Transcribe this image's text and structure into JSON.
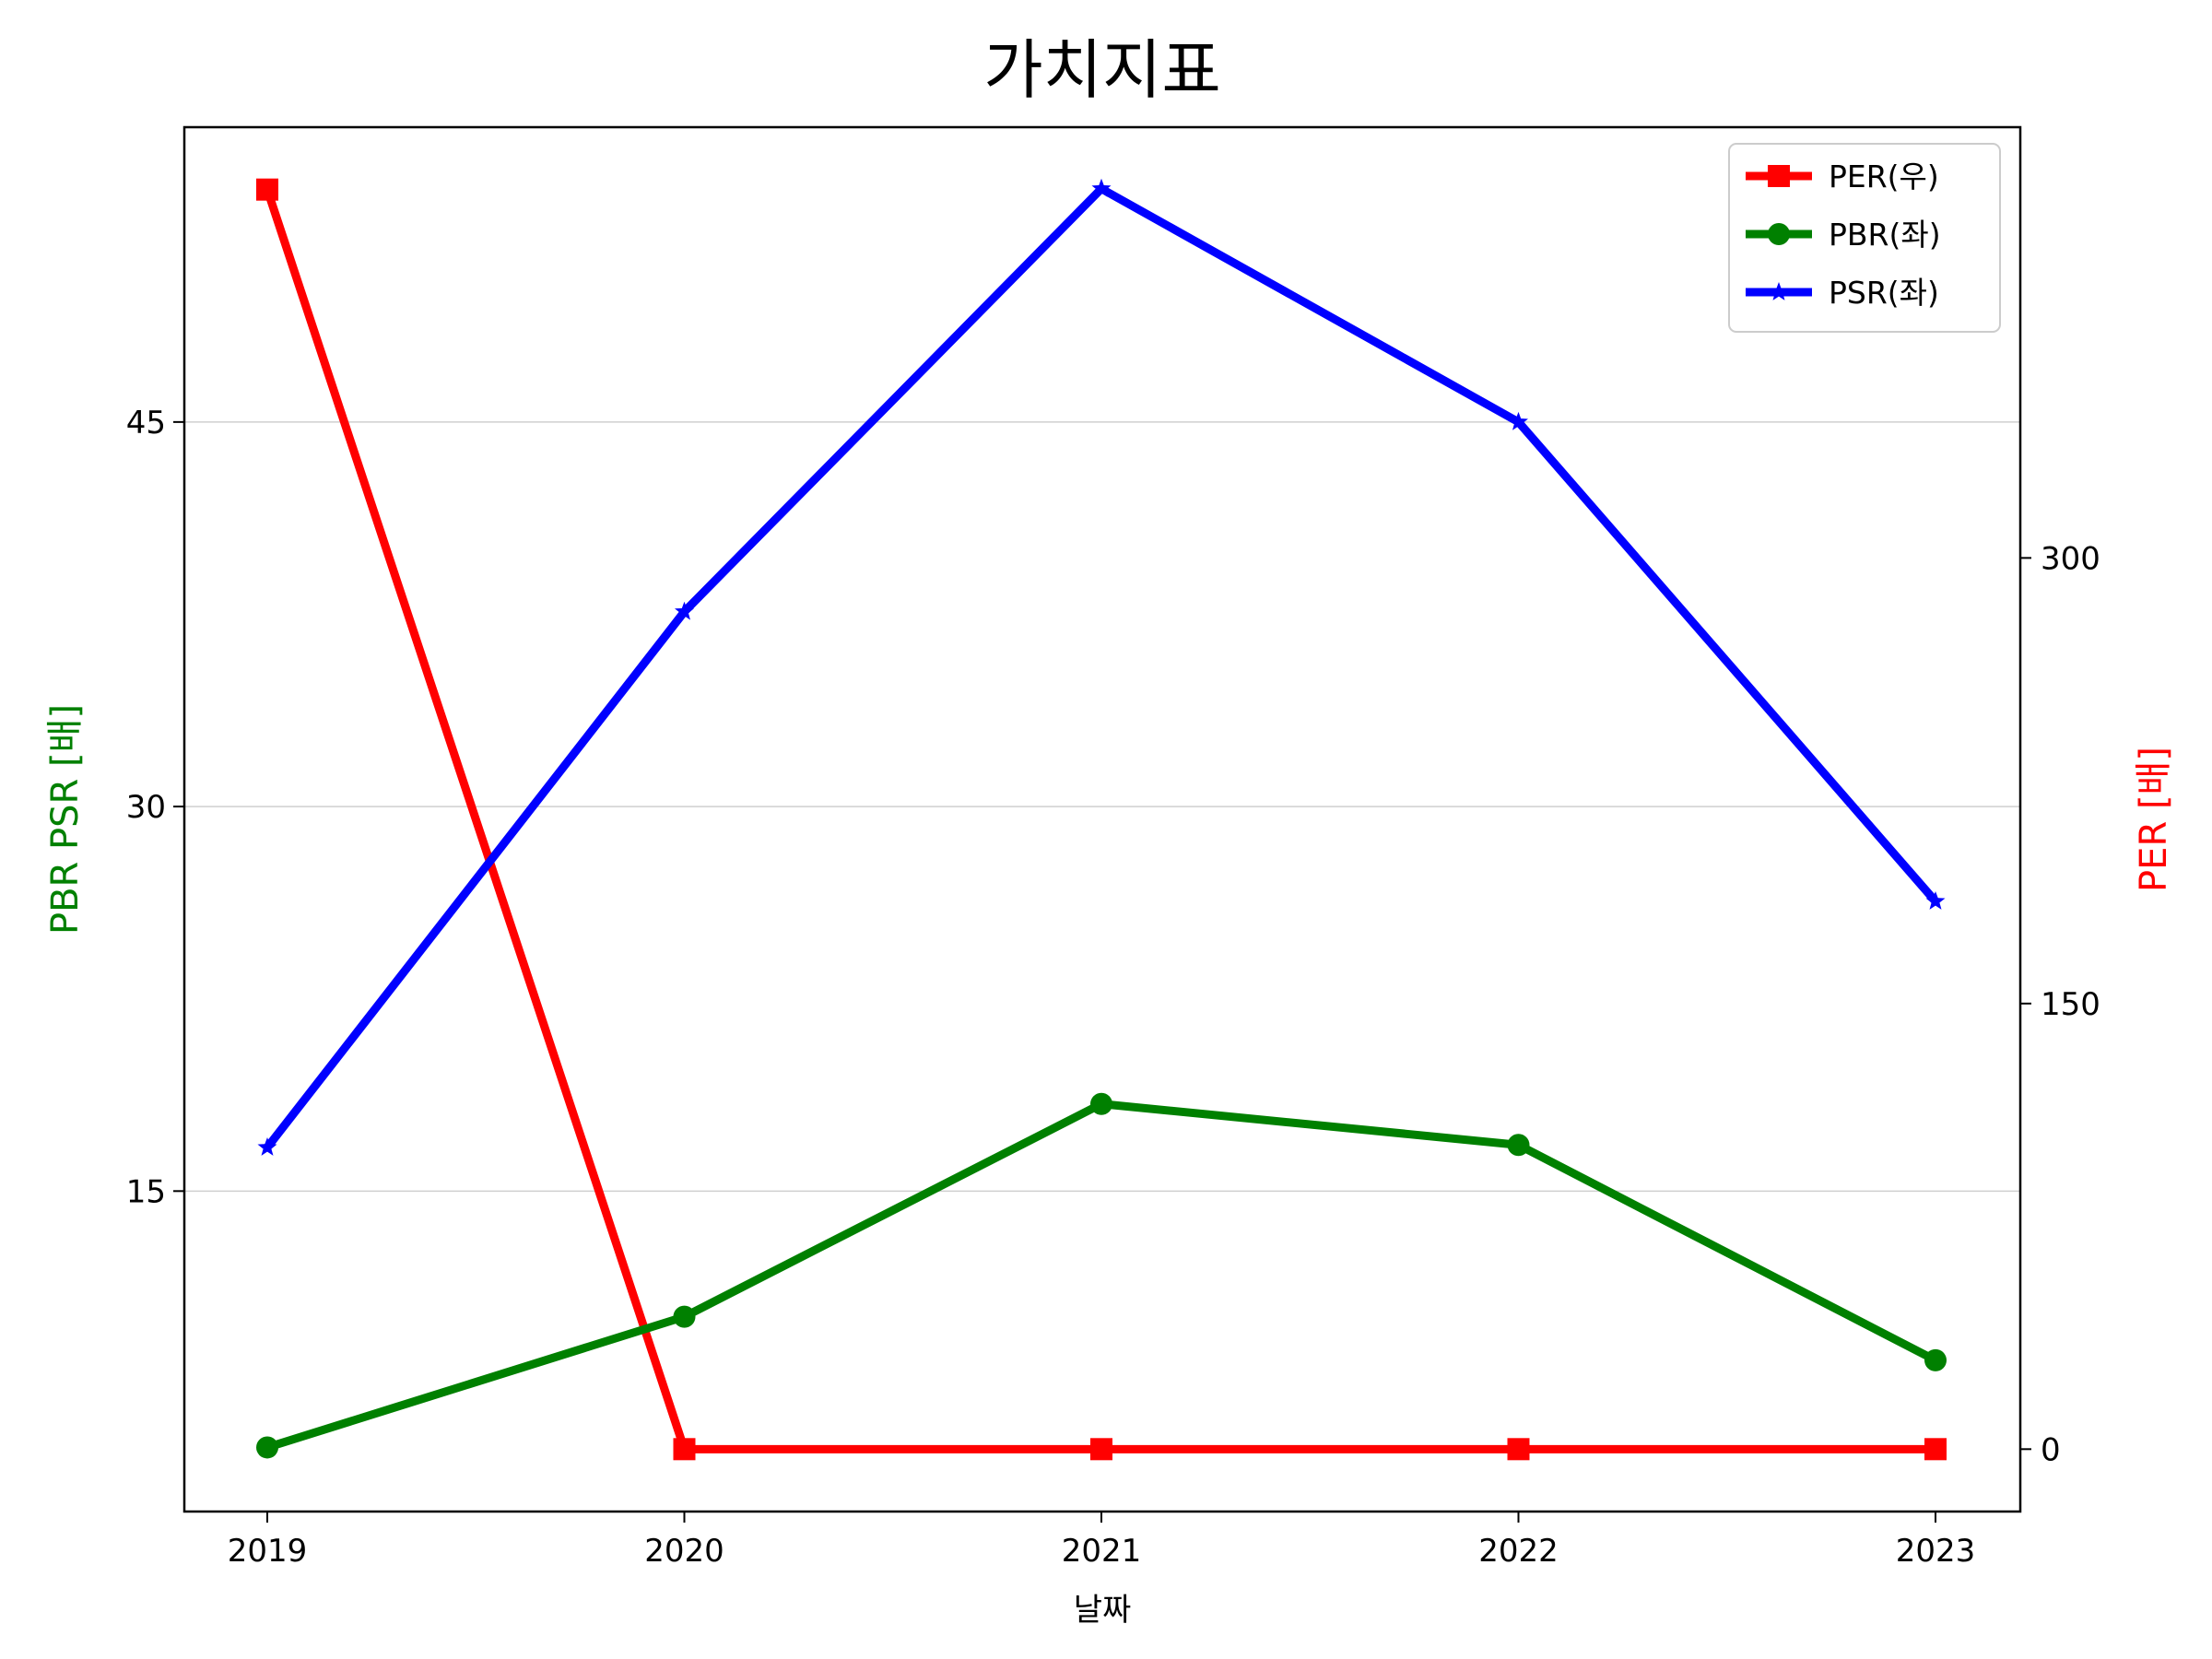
{
  "chart_data": {
    "type": "line",
    "title": "가치지표",
    "xlabel": "날짜",
    "ylabel_left": "PBR PSR [배]",
    "ylabel_right": "PER [배]",
    "ylabel_left_color": "#008000",
    "ylabel_right_color": "#ff0000",
    "categories": [
      "2019",
      "2020",
      "2021",
      "2022",
      "2023"
    ],
    "y_left_ticks": [
      "15",
      "30",
      "45"
    ],
    "y_left_tick_values": [
      15,
      30,
      45
    ],
    "y_left_range": [
      2.5,
      56.5
    ],
    "y_right_ticks": [
      "0",
      "150",
      "300"
    ],
    "y_right_tick_values": [
      0,
      150,
      300
    ],
    "y_right_range": [
      -21,
      445
    ],
    "grid": "horizontal, left axis",
    "legend_position": "top-right",
    "series": [
      {
        "name": "PER(우)",
        "axis": "right",
        "color": "#ff0000",
        "marker": "square",
        "values": [
          424,
          0,
          0,
          0,
          0
        ]
      },
      {
        "name": "PBR(좌)",
        "axis": "left",
        "color": "#008000",
        "marker": "circle",
        "values": [
          5.0,
          10.1,
          18.4,
          16.8,
          8.4
        ]
      },
      {
        "name": "PSR(좌)",
        "axis": "left",
        "color": "#0000ff",
        "marker": "star",
        "values": [
          16.7,
          37.6,
          54.1,
          45.0,
          26.3
        ]
      }
    ]
  }
}
